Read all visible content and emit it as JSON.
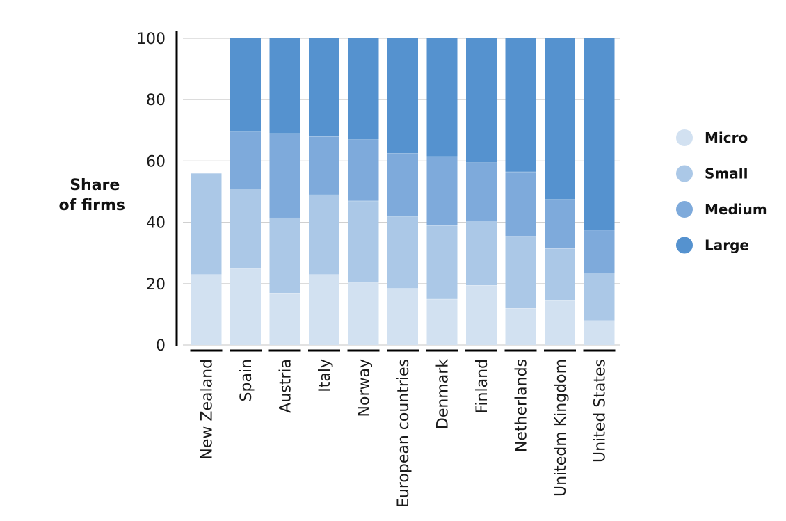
{
  "chart_data": {
    "type": "bar",
    "stacked": true,
    "title": "",
    "xlabel": "",
    "ylabel": "Share of firms",
    "ylabel_lines": [
      "Share",
      "of firms"
    ],
    "ylim": [
      0,
      100
    ],
    "yticks": [
      0,
      20,
      40,
      60,
      80,
      100
    ],
    "grid": true,
    "legend_position": "right",
    "categories": [
      "New Zealand",
      "Spain",
      "Austria",
      "Italy",
      "Norway",
      "European countries",
      "Denmark",
      "Finland",
      "Netherlands",
      "Unitedm Kingdom",
      "United States"
    ],
    "series": [
      {
        "name": "Micro",
        "color": "#d2e1f1",
        "values": [
          23,
          25,
          17,
          23,
          20.5,
          18.5,
          15,
          19.5,
          12,
          14.5,
          8
        ]
      },
      {
        "name": "Small",
        "color": "#abc8e7",
        "values": [
          33,
          26,
          24.5,
          26,
          26.5,
          23.5,
          24,
          21,
          23.5,
          17,
          15.5
        ]
      },
      {
        "name": "Medium",
        "color": "#7eaadb",
        "values": [
          0,
          18.5,
          27.5,
          19,
          20,
          20.5,
          22.5,
          19,
          21,
          16,
          14
        ]
      },
      {
        "name": "Large",
        "color": "#5592cf",
        "values": [
          0,
          30.5,
          31,
          32,
          33,
          37.5,
          38.5,
          40.5,
          43.5,
          52.5,
          62.5
        ]
      }
    ]
  }
}
